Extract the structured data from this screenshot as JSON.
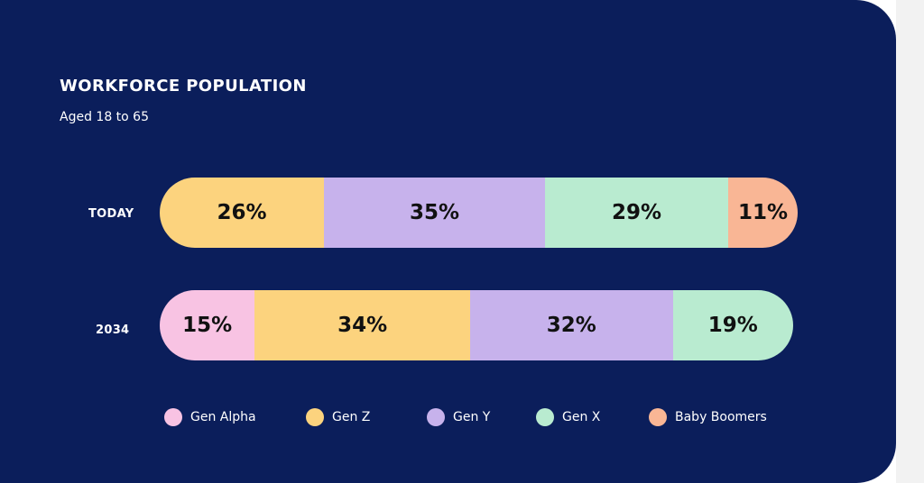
{
  "chart_data": {
    "type": "bar",
    "orientation": "horizontal",
    "stacked": true,
    "title": "WORKFORCE POPULATION",
    "subtitle": "Aged 18 to 65",
    "categories": [
      "TODAY",
      "2034"
    ],
    "series": [
      {
        "name": "Gen Alpha",
        "color": "#f8c3e3",
        "values": [
          0,
          15
        ]
      },
      {
        "name": "Gen Z",
        "color": "#fcd37e",
        "values": [
          26,
          34
        ]
      },
      {
        "name": "Gen Y",
        "color": "#c7b2ec",
        "values": [
          35,
          32
        ]
      },
      {
        "name": "Gen X",
        "color": "#b9ebd0",
        "values": [
          29,
          19
        ]
      },
      {
        "name": "Baby Boomers",
        "color": "#f9b695",
        "values": [
          11,
          0
        ]
      }
    ],
    "data_labels": [
      [
        "26%",
        "35%",
        "29%",
        "11%"
      ],
      [
        "15%",
        "34%",
        "32%",
        "19%"
      ]
    ],
    "legend_position": "bottom"
  }
}
